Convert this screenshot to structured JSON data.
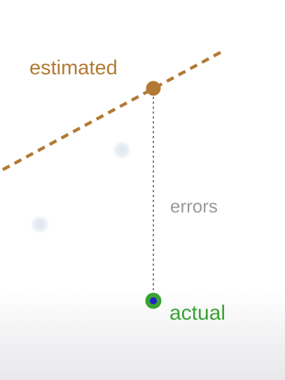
{
  "labels": {
    "estimated": "estimated",
    "errors": "errors",
    "actual": "actual"
  },
  "colors": {
    "estimated": "#b37a34",
    "errors": "#9a9a9a",
    "actual": "#3aa334",
    "actual_center": "#2323cc",
    "error_line": "#7a7a7a",
    "faint_points": "#dfe6ee"
  }
}
